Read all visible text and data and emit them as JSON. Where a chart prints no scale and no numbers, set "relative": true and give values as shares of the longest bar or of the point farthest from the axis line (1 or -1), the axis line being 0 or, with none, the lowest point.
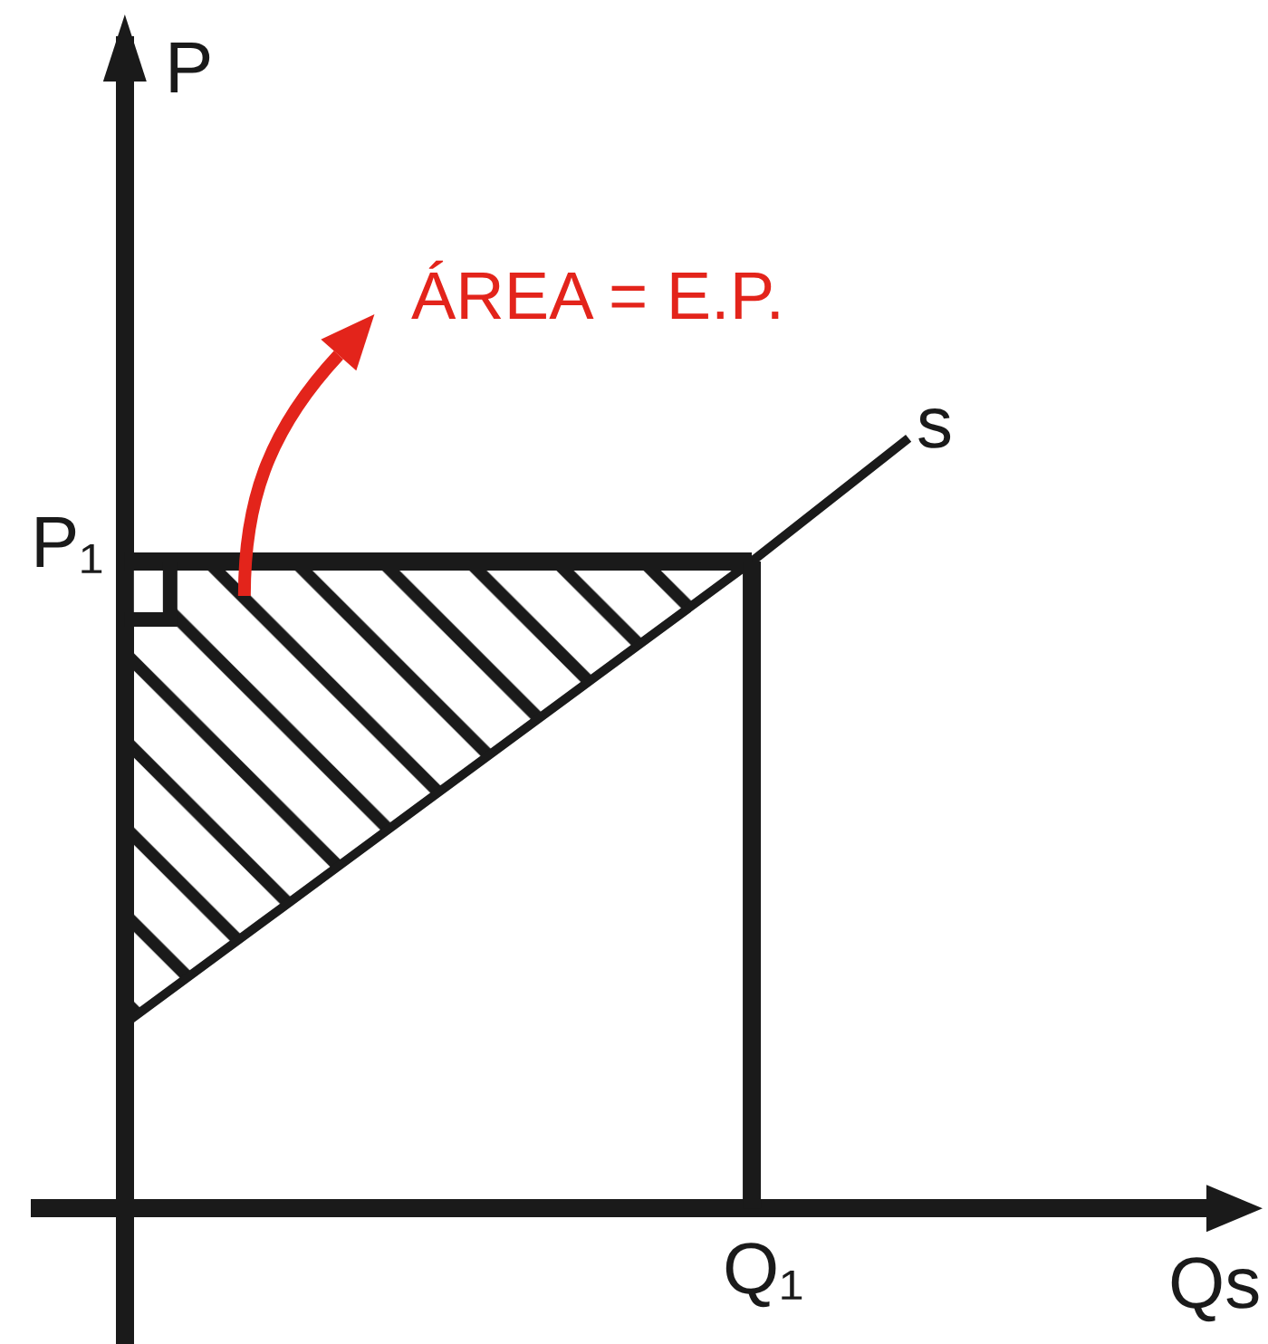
{
  "chart_data": {
    "type": "line",
    "relative": true,
    "xlabel": "Qs",
    "ylabel": "P",
    "categories": [
      null,
      null,
      null,
      null,
      null,
      null
    ],
    "series": [
      {
        "name": "s",
        "color": "#1a1a1a",
        "values": [
          0.24,
          0.39,
          0.54,
          0.69,
          0.84,
          1
        ],
        "lower": [
          0.24,
          0.39,
          0.54,
          0.69,
          0.84,
          null
        ],
        "upper": [
          0.84,
          0.84,
          0.84,
          0.84,
          0.84,
          null
        ]
      }
    ],
    "ref_lines": [
      {
        "axis": "y",
        "value": 0.84,
        "label": "P₁",
        "color": "#1a1a1a"
      }
    ],
    "annotations": [
      "ÁREA = E.P.",
      "Q₁"
    ]
  }
}
